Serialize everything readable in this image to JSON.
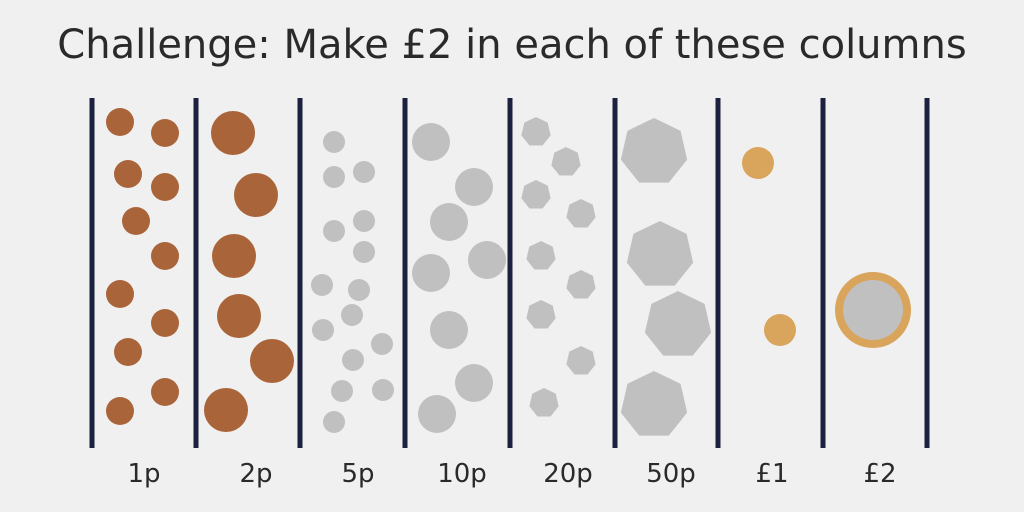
{
  "title": "Challenge: Make £2 in each of these columns",
  "columns": [
    "1p",
    "2p",
    "5p",
    "10p",
    "20p",
    "50p",
    "£1",
    "£2"
  ]
}
